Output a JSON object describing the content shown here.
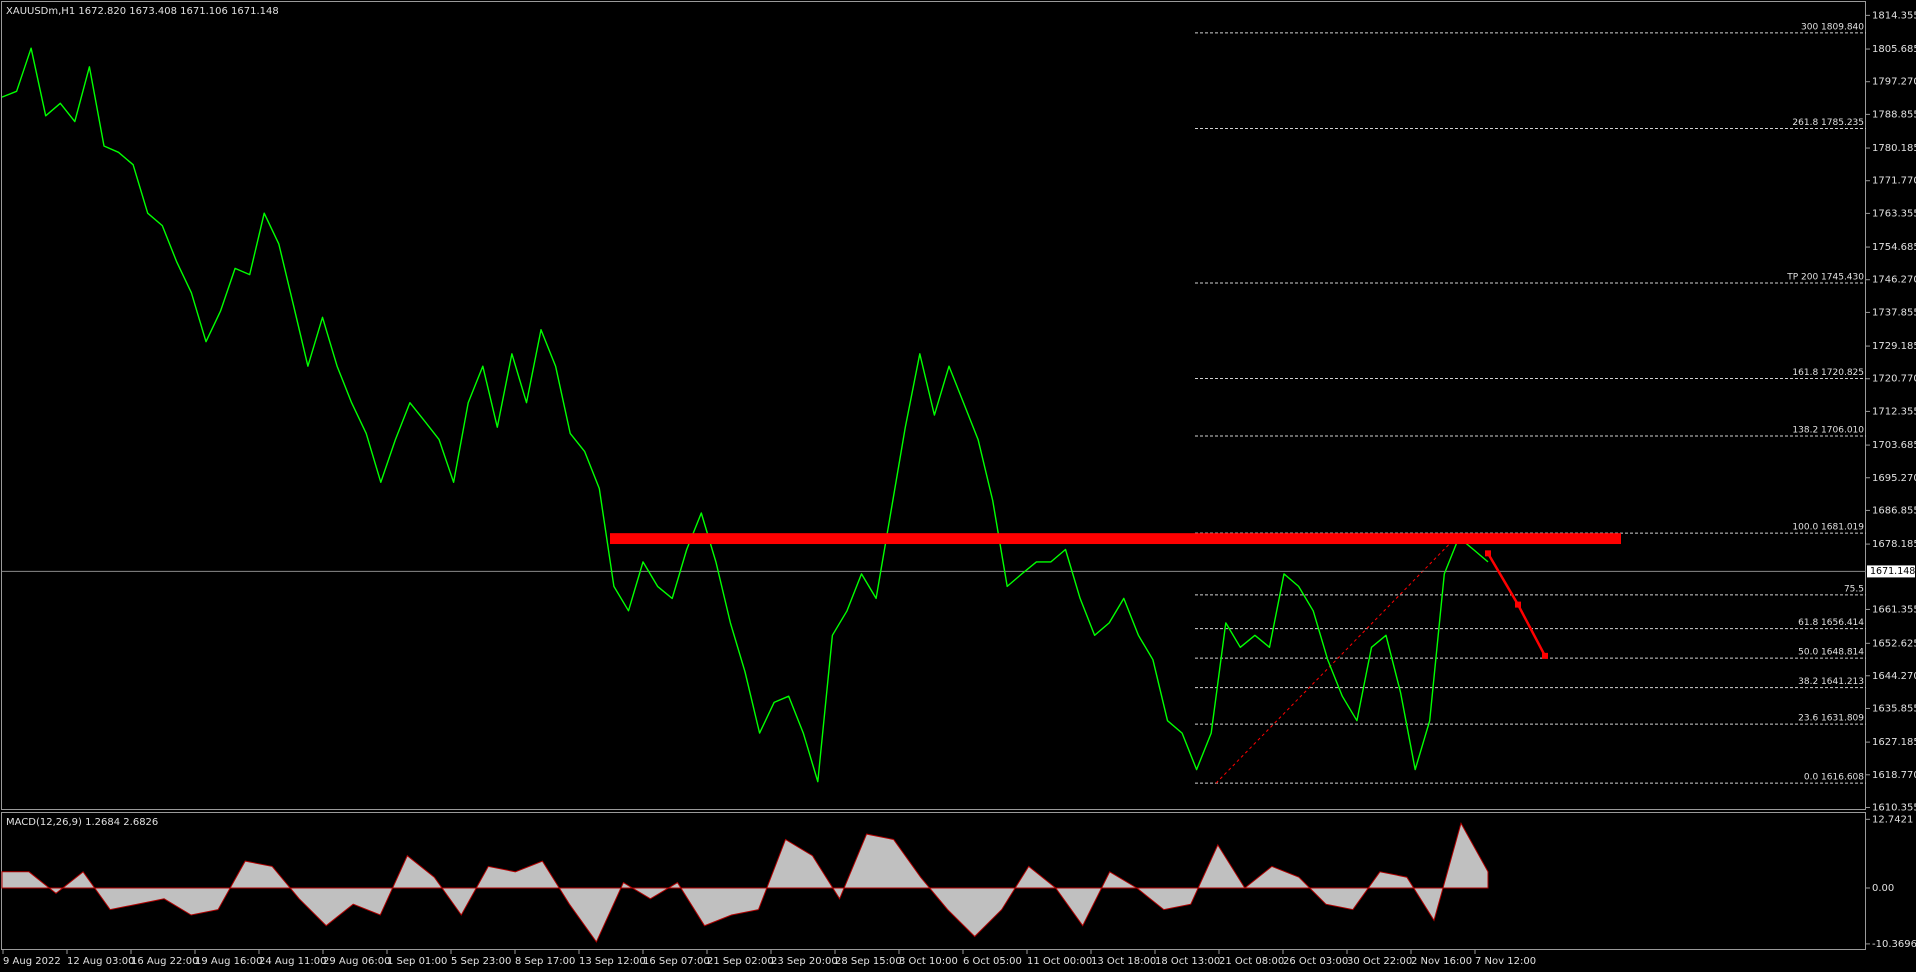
{
  "chart_data": [
    {
      "type": "line",
      "title": "XAUUSDm,H1  1672.820 1673.408 1671.106 1671.148",
      "color": "#00ff00",
      "values": [
        1793.3,
        1794.8,
        1805.9,
        1788.5,
        1791.7,
        1787.0,
        1801.1,
        1780.7,
        1779.1,
        1775.9,
        1763.4,
        1760.2,
        1750.8,
        1742.9,
        1730.3,
        1738.2,
        1749.2,
        1747.6,
        1763.4,
        1755.5,
        1739.8,
        1724.0,
        1736.6,
        1724.0,
        1714.6,
        1706.7,
        1694.1,
        1705.1,
        1714.6,
        1709.9,
        1705.1,
        1694.1,
        1714.6,
        1724.0,
        1708.3,
        1727.2,
        1714.6,
        1733.4,
        1724.0,
        1706.7,
        1702.0,
        1692.5,
        1667.3,
        1661.0,
        1673.6,
        1667.3,
        1664.2,
        1676.8,
        1686.2,
        1673.6,
        1657.9,
        1645.3,
        1629.5,
        1637.4,
        1639.0,
        1629.5,
        1617.0,
        1654.7,
        1661.0,
        1670.5,
        1664.2,
        1686.2,
        1708.3,
        1727.2,
        1711.4,
        1724.0,
        1714.6,
        1705.1,
        1689.4,
        1667.3,
        1670.5,
        1673.6,
        1673.6,
        1676.8,
        1664.2,
        1654.7,
        1657.9,
        1664.2,
        1654.7,
        1648.4,
        1632.7,
        1629.5,
        1620.1,
        1629.5,
        1657.9,
        1651.6,
        1654.7,
        1651.6,
        1670.5,
        1667.3,
        1661.0,
        1648.4,
        1639.0,
        1632.7,
        1651.6,
        1654.7,
        1639.9,
        1620.1,
        1632.7,
        1670.5,
        1679.9,
        1676.8,
        1673.6
      ],
      "ylim": [
        1609.7,
        1817.8
      ],
      "yticks": [
        1814.355,
        1805.685,
        {
          "value": 1797.27,
          "label": "1797.270"
        },
        1788.855,
        1780.185,
        {
          "value": 1771.77,
          "label": "1771.770"
        },
        1763.355,
        1754.685,
        {
          "value": 1746.27,
          "label": "1746.270"
        },
        1737.855,
        1729.185,
        {
          "value": 1720.77,
          "label": "1720.770"
        },
        1712.355,
        1703.685,
        {
          "value": 1695.27,
          "label": "1695.270"
        },
        1686.855,
        1678.185,
        1661.355,
        1652.625,
        {
          "value": 1644.27,
          "label": "1644.270"
        },
        1635.855,
        1627.185,
        {
          "value": 1618.77,
          "label": "1618.770"
        },
        1610.355
      ],
      "xtick_labels": [
        "9 Aug 2022",
        "12 Aug 03:00",
        "16 Aug 22:00",
        "19 Aug 16:00",
        "24 Aug 11:00",
        "29 Aug 06:00",
        "1 Sep 01:00",
        "5 Sep 23:00",
        "8 Sep 17:00",
        "13 Sep 12:00",
        "16 Sep 07:00",
        "21 Sep 02:00",
        "23 Sep 20:00",
        "28 Sep 15:00",
        "3 Oct 10:00",
        "6 Oct 05:00",
        "11 Oct 00:00",
        "13 Oct 18:00",
        "18 Oct 13:00",
        "21 Oct 08:00",
        "26 Oct 03:00",
        "30 Oct 22:00",
        "2 Nov 16:00",
        "7 Nov 12:00"
      ],
      "current_price": 1671.148,
      "fib_levels": [
        {
          "label": "300 1809.840",
          "value": 1809.84
        },
        {
          "label": "261.8 1785.235",
          "value": 1785.235
        },
        {
          "label": "TP 200 1745.430",
          "value": 1745.43
        },
        {
          "label": "161.8 1720.825",
          "value": 1720.825
        },
        {
          "label": "138.2 1706.010",
          "value": 1706.01
        },
        {
          "label": "100.0 1681.019",
          "value": 1681.019
        },
        {
          "label": "75.5",
          "value": 1665.1
        },
        {
          "label": "61.8 1656.414",
          "value": 1656.414
        },
        {
          "label": "50.0 1648.814",
          "value": 1648.814
        },
        {
          "label": "38.2 1641.213",
          "value": 1641.213
        },
        {
          "label": "23.6 1631.809",
          "value": 1631.809
        },
        {
          "label": "0.0 1616.608",
          "value": 1616.608
        }
      ],
      "zone": {
        "values": [
          1678.2,
          1681.0
        ],
        "color": "#ff0000"
      },
      "projection": {
        "values": [
          1675.8,
          1662.6,
          1649.4
        ],
        "color": "#ff0000"
      }
    },
    {
      "type": "area",
      "title": "MACD(12,26,9) 1.2684 2.6826",
      "color": "#c0c0c0",
      "values": [
        3,
        3,
        -1,
        3,
        -4,
        -3,
        -2,
        -5,
        -4,
        5,
        4,
        -2,
        -7,
        -3,
        -5,
        6,
        2,
        -5,
        4,
        3,
        5,
        -3,
        -10,
        1,
        -2,
        1,
        -7,
        -5,
        -4,
        9,
        6,
        -2,
        10,
        9,
        2,
        -4,
        -9,
        -4,
        4,
        0,
        -7,
        3,
        0,
        -4,
        -3,
        8,
        0,
        4,
        2,
        -3,
        -4,
        3,
        2,
        -6,
        12,
        3
      ],
      "ylim": [
        -11.5,
        14.1
      ],
      "yticks": [
        12.7421,
        {
          "value": 0,
          "label": "0.00"
        },
        -10.3696
      ]
    }
  ]
}
